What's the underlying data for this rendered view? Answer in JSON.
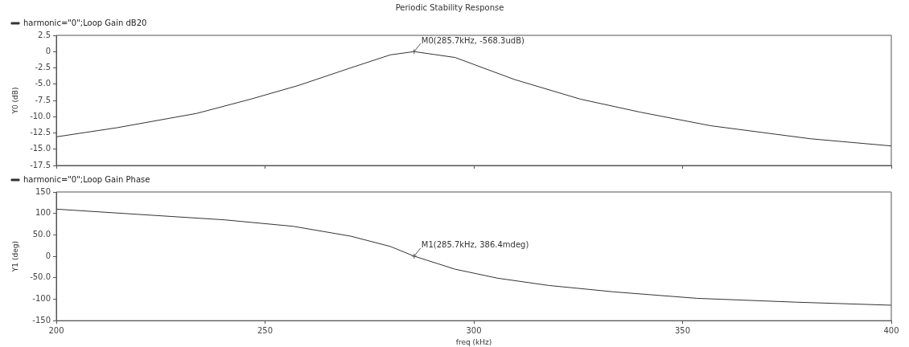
{
  "chart_data": [
    {
      "type": "line",
      "title": "Periodic Stability Response",
      "ylabel": "Y0 (dB)",
      "legend": "top left",
      "marker": "none",
      "line_style": "solid",
      "grid": false,
      "tick_labels": "y",
      "xlim": [
        200,
        400
      ],
      "xticks": [
        200,
        250,
        300,
        350,
        400
      ],
      "ylim": [
        -17.5,
        2.5
      ],
      "yticks": [
        2.5,
        0,
        -2.5,
        {
          "value": -5,
          "label": "-5.0"
        },
        -7.5,
        {
          "value": -10,
          "label": "-10.0"
        },
        -12.5,
        {
          "value": -15,
          "label": "-15.0"
        },
        -17.5
      ],
      "series": [
        {
          "name": "harmonic=\"0\";Loop Gain dB20",
          "color": "#333333",
          "x": [
            200,
            214.5,
            233.6,
            246.6,
            258,
            270.5,
            280,
            285.7,
            295.5,
            309.8,
            325.5,
            339.8,
            356.8,
            380.7,
            400
          ],
          "values": [
            -13.1,
            -11.7,
            -9.5,
            -7.3,
            -5.2,
            -2.5,
            -0.5,
            0,
            -0.9,
            -4.3,
            -7.3,
            -9.3,
            -11.4,
            -13.4,
            -14.5
          ]
        }
      ],
      "annotations": [
        {
          "text": "M0(285.7kHz, -568.3udB)",
          "x": 285.7,
          "y": -0.0005683
        }
      ]
    },
    {
      "type": "line",
      "xlabel": "freq (kHz)",
      "ylabel": "Y1 (deg)",
      "legend": "top left",
      "marker": "none",
      "line_style": "solid",
      "grid": false,
      "xlim": [
        200,
        400
      ],
      "xticks": [
        200,
        250,
        300,
        350,
        400
      ],
      "ylim": [
        -150,
        150
      ],
      "yticks": [
        150,
        100,
        {
          "value": 50,
          "label": "50.0"
        },
        0,
        {
          "value": -50,
          "label": "-50.0"
        },
        -100,
        -150
      ],
      "series": [
        {
          "name": "harmonic=\"0\";Loop Gain Phase",
          "color": "#333333",
          "x": [
            200,
            219.3,
            240.3,
            256.7,
            270.5,
            280,
            285.7,
            295.5,
            305.7,
            318,
            333.7,
            353.5,
            377.4,
            400
          ],
          "values": [
            110,
            98,
            85,
            70,
            47,
            23,
            0.3864,
            -30,
            -51,
            -68,
            -83,
            -98,
            -107,
            -114
          ]
        }
      ],
      "annotations": [
        {
          "text": "M1(285.7kHz, 386.4mdeg)",
          "x": 285.7,
          "y": 0.3864
        }
      ]
    }
  ]
}
